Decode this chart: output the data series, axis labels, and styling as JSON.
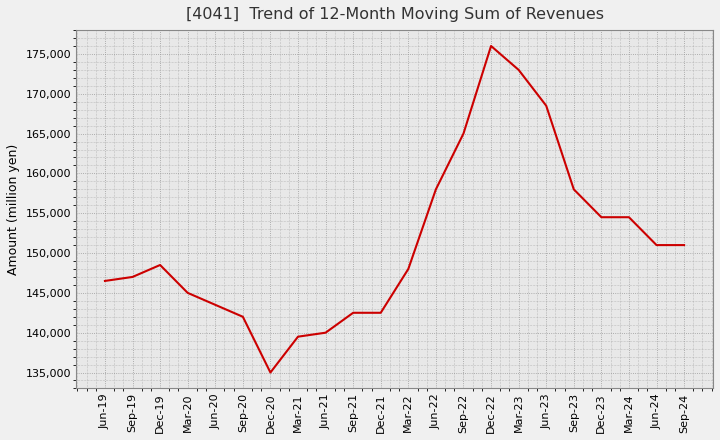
{
  "title": "[4041]  Trend of 12-Month Moving Sum of Revenues",
  "ylabel": "Amount (million yen)",
  "background_color": "#f0f0f0",
  "plot_background_color": "#e8e8e8",
  "line_color": "#cc0000",
  "grid_color": "#999999",
  "x_labels": [
    "Jun-19",
    "Sep-19",
    "Dec-19",
    "Mar-20",
    "Jun-20",
    "Sep-20",
    "Dec-20",
    "Mar-21",
    "Jun-21",
    "Sep-21",
    "Dec-21",
    "Mar-22",
    "Jun-22",
    "Sep-22",
    "Dec-22",
    "Mar-23",
    "Jun-23",
    "Sep-23",
    "Dec-23",
    "Mar-24",
    "Jun-24",
    "Sep-24"
  ],
  "values": [
    146500,
    147000,
    148500,
    145000,
    143500,
    142000,
    135000,
    139500,
    140000,
    142500,
    142500,
    148000,
    158000,
    165000,
    176000,
    173000,
    168500,
    158000,
    154500,
    154500,
    151000,
    151000
  ],
  "ylim": [
    133000,
    178000
  ],
  "yticks": [
    135000,
    140000,
    145000,
    150000,
    155000,
    160000,
    165000,
    170000,
    175000
  ],
  "title_fontsize": 11.5,
  "label_fontsize": 9,
  "tick_fontsize": 8
}
